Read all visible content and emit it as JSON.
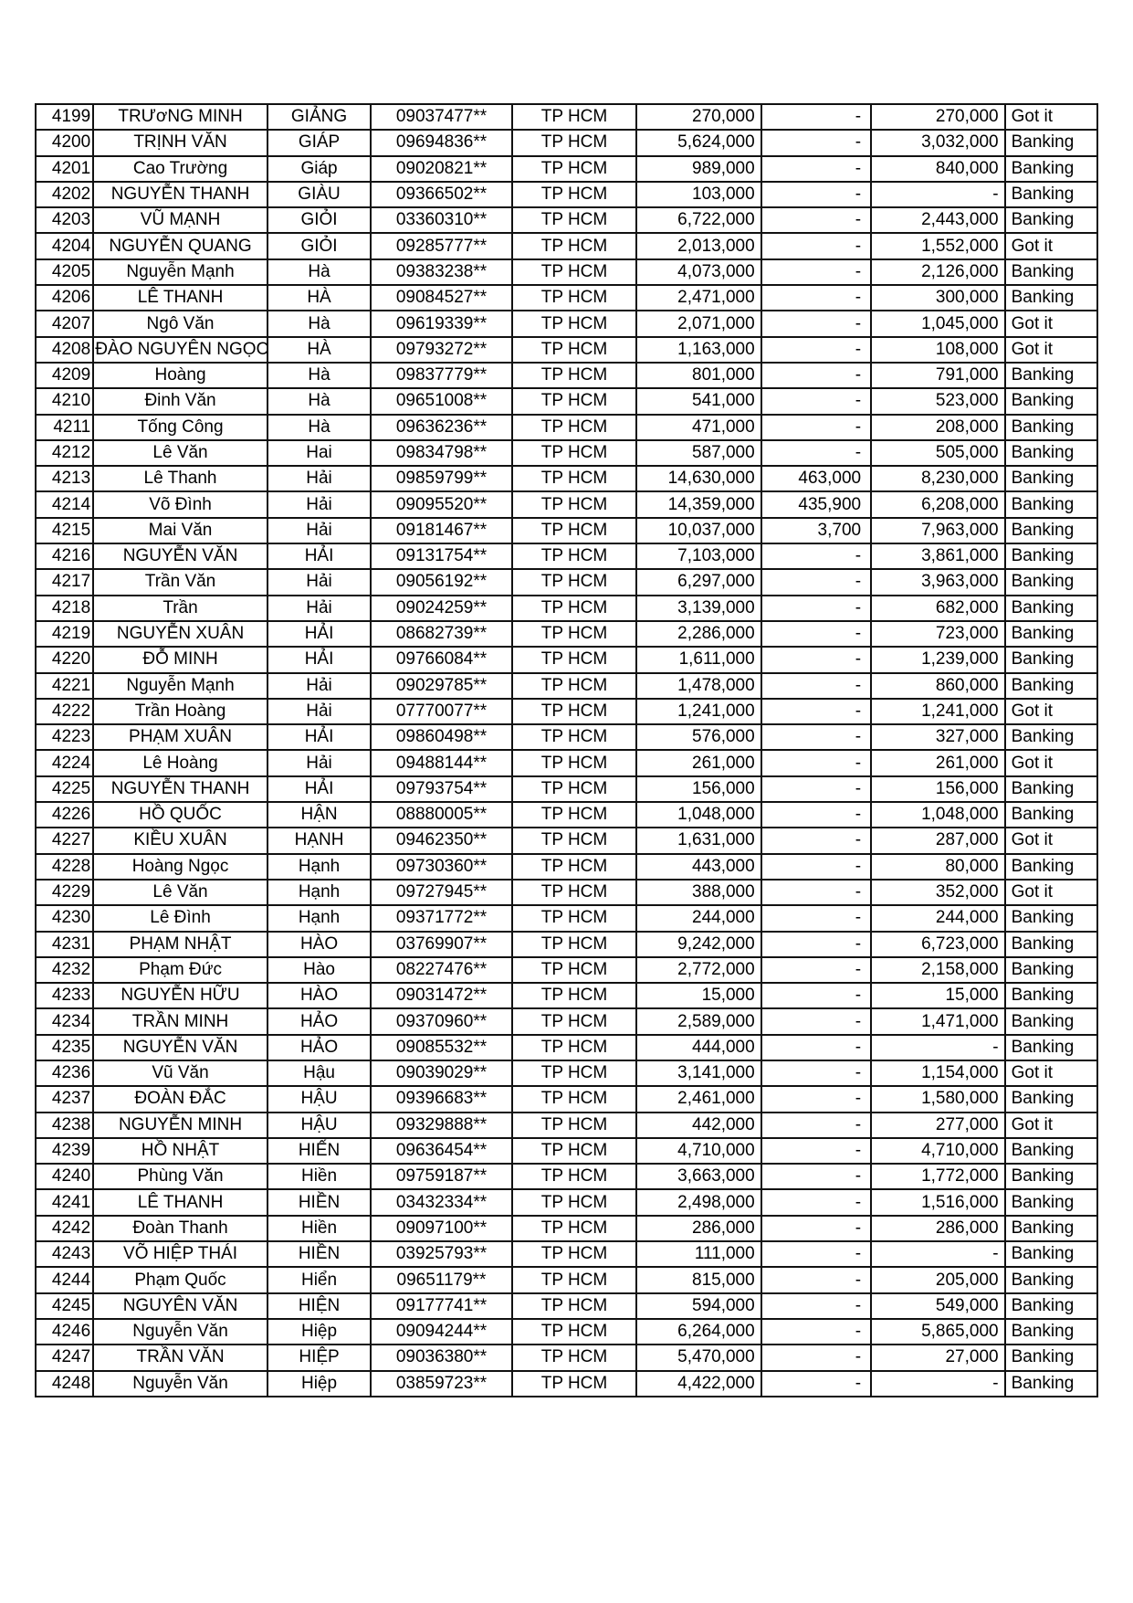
{
  "rows": [
    [
      "4199",
      "TRƯơNG MINH",
      "GIẢNG",
      "09037477**",
      "TP HCM",
      "270,000",
      "-",
      "270,000",
      "Got it"
    ],
    [
      "4200",
      "TRỊNH VĂN",
      "GIÁP",
      "09694836**",
      "TP HCM",
      "5,624,000",
      "-",
      "3,032,000",
      "Banking"
    ],
    [
      "4201",
      "Cao Trường",
      "Giáp",
      "09020821**",
      "TP HCM",
      "989,000",
      "-",
      "840,000",
      "Banking"
    ],
    [
      "4202",
      "NGUYỄN THANH",
      "GIÀU",
      "09366502**",
      "TP HCM",
      "103,000",
      "-",
      "-",
      "Banking"
    ],
    [
      "4203",
      "VŨ MẠNH",
      "GIỎI",
      "03360310**",
      "TP HCM",
      "6,722,000",
      "-",
      "2,443,000",
      "Banking"
    ],
    [
      "4204",
      "NGUYỄN QUANG",
      "GIỎI",
      "09285777**",
      "TP HCM",
      "2,013,000",
      "-",
      "1,552,000",
      "Got it"
    ],
    [
      "4205",
      "Nguyễn Mạnh",
      "Hà",
      "09383238**",
      "TP HCM",
      "4,073,000",
      "-",
      "2,126,000",
      "Banking"
    ],
    [
      "4206",
      "LÊ THANH",
      "HÀ",
      "09084527**",
      "TP HCM",
      "2,471,000",
      "-",
      "300,000",
      "Banking"
    ],
    [
      "4207",
      "Ngô Văn",
      "Hà",
      "09619339**",
      "TP HCM",
      "2,071,000",
      "-",
      "1,045,000",
      "Got it"
    ],
    [
      "4208",
      "ĐÀO NGUYÊN NGỌC",
      "HÀ",
      "09793272**",
      "TP HCM",
      "1,163,000",
      "-",
      "108,000",
      "Got it"
    ],
    [
      "4209",
      "Hoàng",
      "Hà",
      "09837779**",
      "TP HCM",
      "801,000",
      "-",
      "791,000",
      "Banking"
    ],
    [
      "4210",
      "Đinh Văn",
      "Hà",
      "09651008**",
      "TP HCM",
      "541,000",
      "-",
      "523,000",
      "Banking"
    ],
    [
      "4211",
      "Tống Công",
      "Hà",
      "09636236**",
      "TP HCM",
      "471,000",
      "-",
      "208,000",
      "Banking"
    ],
    [
      "4212",
      "Lê Văn",
      "Hai",
      "09834798**",
      "TP HCM",
      "587,000",
      "-",
      "505,000",
      "Banking"
    ],
    [
      "4213",
      "Lê Thanh",
      "Hải",
      "09859799**",
      "TP HCM",
      "14,630,000",
      "463,000",
      "8,230,000",
      "Banking"
    ],
    [
      "4214",
      "Võ Đình",
      "Hải",
      "09095520**",
      "TP HCM",
      "14,359,000",
      "435,900",
      "6,208,000",
      "Banking"
    ],
    [
      "4215",
      "Mai Văn",
      "Hải",
      "09181467**",
      "TP HCM",
      "10,037,000",
      "3,700",
      "7,963,000",
      "Banking"
    ],
    [
      "4216",
      "NGUYỄN VĂN",
      "HẢI",
      "09131754**",
      "TP HCM",
      "7,103,000",
      "-",
      "3,861,000",
      "Banking"
    ],
    [
      "4217",
      "Trần Văn",
      "Hải",
      "09056192**",
      "TP HCM",
      "6,297,000",
      "-",
      "3,963,000",
      "Banking"
    ],
    [
      "4218",
      "Trần",
      "Hải",
      "09024259**",
      "TP HCM",
      "3,139,000",
      "-",
      "682,000",
      "Banking"
    ],
    [
      "4219",
      "NGUYỄN XUÂN",
      "HẢI",
      "08682739**",
      "TP HCM",
      "2,286,000",
      "-",
      "723,000",
      "Banking"
    ],
    [
      "4220",
      "ĐỖ MINH",
      "HẢI",
      "09766084**",
      "TP HCM",
      "1,611,000",
      "-",
      "1,239,000",
      "Banking"
    ],
    [
      "4221",
      "Nguyễn Mạnh",
      "Hải",
      "09029785**",
      "TP HCM",
      "1,478,000",
      "-",
      "860,000",
      "Banking"
    ],
    [
      "4222",
      "Trần  Hoàng",
      "Hải",
      "07770077**",
      "TP HCM",
      "1,241,000",
      "-",
      "1,241,000",
      "Got it"
    ],
    [
      "4223",
      "PHẠM XUÂN",
      "HẢI",
      "09860498**",
      "TP HCM",
      "576,000",
      "-",
      "327,000",
      "Banking"
    ],
    [
      "4224",
      "Lê Hoàng",
      "Hải",
      "09488144**",
      "TP HCM",
      "261,000",
      "-",
      "261,000",
      "Got it"
    ],
    [
      "4225",
      "NGUYỄN THANH",
      "HẢI",
      "09793754**",
      "TP HCM",
      "156,000",
      "-",
      "156,000",
      "Banking"
    ],
    [
      "4226",
      "HỒ QUỐC",
      "HẬN",
      "08880005**",
      "TP HCM",
      "1,048,000",
      "-",
      "1,048,000",
      "Banking"
    ],
    [
      "4227",
      "KIỀU XUÂN",
      "HẠNH",
      "09462350**",
      "TP HCM",
      "1,631,000",
      "-",
      "287,000",
      "Got it"
    ],
    [
      "4228",
      "Hoàng Ngọc",
      "Hạnh",
      "09730360**",
      "TP HCM",
      "443,000",
      "-",
      "80,000",
      "Banking"
    ],
    [
      "4229",
      "Lê Văn",
      "Hạnh",
      "09727945**",
      "TP HCM",
      "388,000",
      "-",
      "352,000",
      "Got it"
    ],
    [
      "4230",
      "Lê Đình",
      "Hạnh",
      "09371772**",
      "TP HCM",
      "244,000",
      "-",
      "244,000",
      "Banking"
    ],
    [
      "4231",
      "PHẠM NHẬT",
      "HÀO",
      "03769907**",
      "TP HCM",
      "9,242,000",
      "-",
      "6,723,000",
      "Banking"
    ],
    [
      "4232",
      "Phạm Đức",
      "Hào",
      "08227476**",
      "TP HCM",
      "2,772,000",
      "-",
      "2,158,000",
      "Banking"
    ],
    [
      "4233",
      "NGUYỄN HỮU",
      "HÀO",
      "09031472**",
      "TP HCM",
      "15,000",
      "-",
      "15,000",
      "Banking"
    ],
    [
      "4234",
      "TRẦN MINH",
      "HẢO",
      "09370960**",
      "TP HCM",
      "2,589,000",
      "-",
      "1,471,000",
      "Banking"
    ],
    [
      "4235",
      "NGUYỄN VĂN",
      "HẢO",
      "09085532**",
      "TP HCM",
      "444,000",
      "-",
      "-",
      "Banking"
    ],
    [
      "4236",
      "Vũ Văn",
      "Hậu",
      "09039029**",
      "TP HCM",
      "3,141,000",
      "-",
      "1,154,000",
      "Got it"
    ],
    [
      "4237",
      "ĐOÀN ĐẮC",
      "HẬU",
      "09396683**",
      "TP HCM",
      "2,461,000",
      "-",
      "1,580,000",
      "Banking"
    ],
    [
      "4238",
      "NGUYỄN MINH",
      "HẬU",
      "09329888**",
      "TP HCM",
      "442,000",
      "-",
      "277,000",
      "Got it"
    ],
    [
      "4239",
      "HỒ NHẬT",
      "HIẾN",
      "09636454**",
      "TP HCM",
      "4,710,000",
      "-",
      "4,710,000",
      "Banking"
    ],
    [
      "4240",
      "Phùng Văn",
      "Hiền",
      "09759187**",
      "TP HCM",
      "3,663,000",
      "-",
      "1,772,000",
      "Banking"
    ],
    [
      "4241",
      "LÊ THANH",
      "HIỀN",
      "03432334**",
      "TP HCM",
      "2,498,000",
      "-",
      "1,516,000",
      "Banking"
    ],
    [
      "4242",
      "Đoàn Thanh",
      "Hiền",
      "09097100**",
      "TP HCM",
      "286,000",
      "-",
      "286,000",
      "Banking"
    ],
    [
      "4243",
      "VÕ HIỆP THÁI",
      "HIỀN",
      "03925793**",
      "TP HCM",
      "111,000",
      "-",
      "-",
      "Banking"
    ],
    [
      "4244",
      "Phạm Quốc",
      "Hiển",
      "09651179**",
      "TP HCM",
      "815,000",
      "-",
      "205,000",
      "Banking"
    ],
    [
      "4245",
      "NGUYÊN VĂN",
      "HIỆN",
      "09177741**",
      "TP HCM",
      "594,000",
      "-",
      "549,000",
      "Banking"
    ],
    [
      "4246",
      "Nguyễn Văn",
      "Hiệp",
      "09094244**",
      "TP HCM",
      "6,264,000",
      "-",
      "5,865,000",
      "Banking"
    ],
    [
      "4247",
      "TRẦN VĂN",
      "HIỆP",
      "09036380**",
      "TP HCM",
      "5,470,000",
      "-",
      "27,000",
      "Banking"
    ],
    [
      "4248",
      "Nguyễn Văn",
      "Hiệp",
      "03859723**",
      "TP HCM",
      "4,422,000",
      "-",
      "-",
      "Banking"
    ]
  ]
}
